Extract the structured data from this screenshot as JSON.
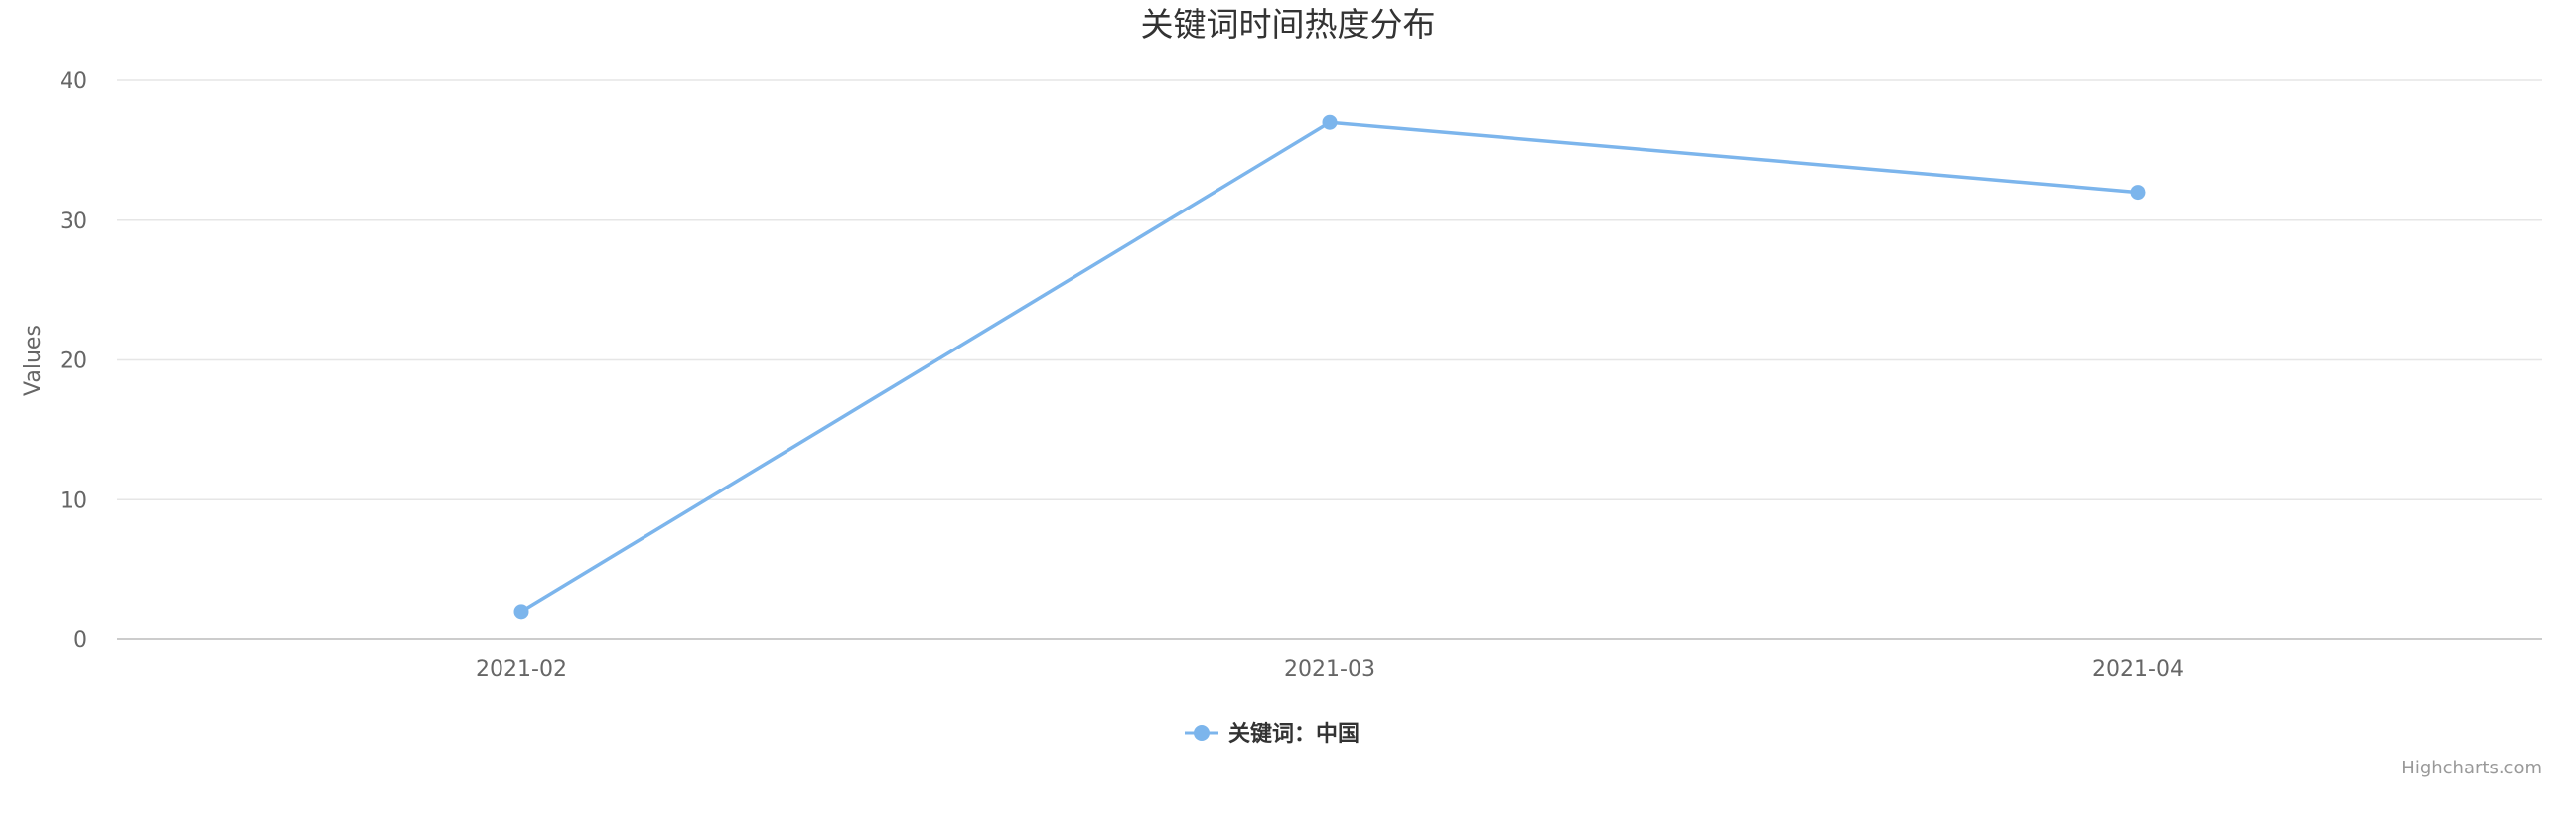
{
  "chart_data": {
    "type": "line",
    "title": "关键词时间热度分布",
    "xlabel": "",
    "ylabel": "Values",
    "categories": [
      "2021-02",
      "2021-03",
      "2021-04"
    ],
    "series": [
      {
        "name": "关键词：中国",
        "values": [
          2,
          37,
          32
        ],
        "color": "#7cb5ec"
      }
    ],
    "ylim": [
      0,
      40
    ],
    "yticks": [
      0,
      10,
      20,
      30,
      40
    ],
    "grid": true,
    "legend_position": "bottom-center"
  },
  "credits": "Highcharts.com",
  "colors": {
    "series": "#7cb5ec",
    "grid": "#e6e6e6",
    "axis_line": "#cccccc"
  }
}
